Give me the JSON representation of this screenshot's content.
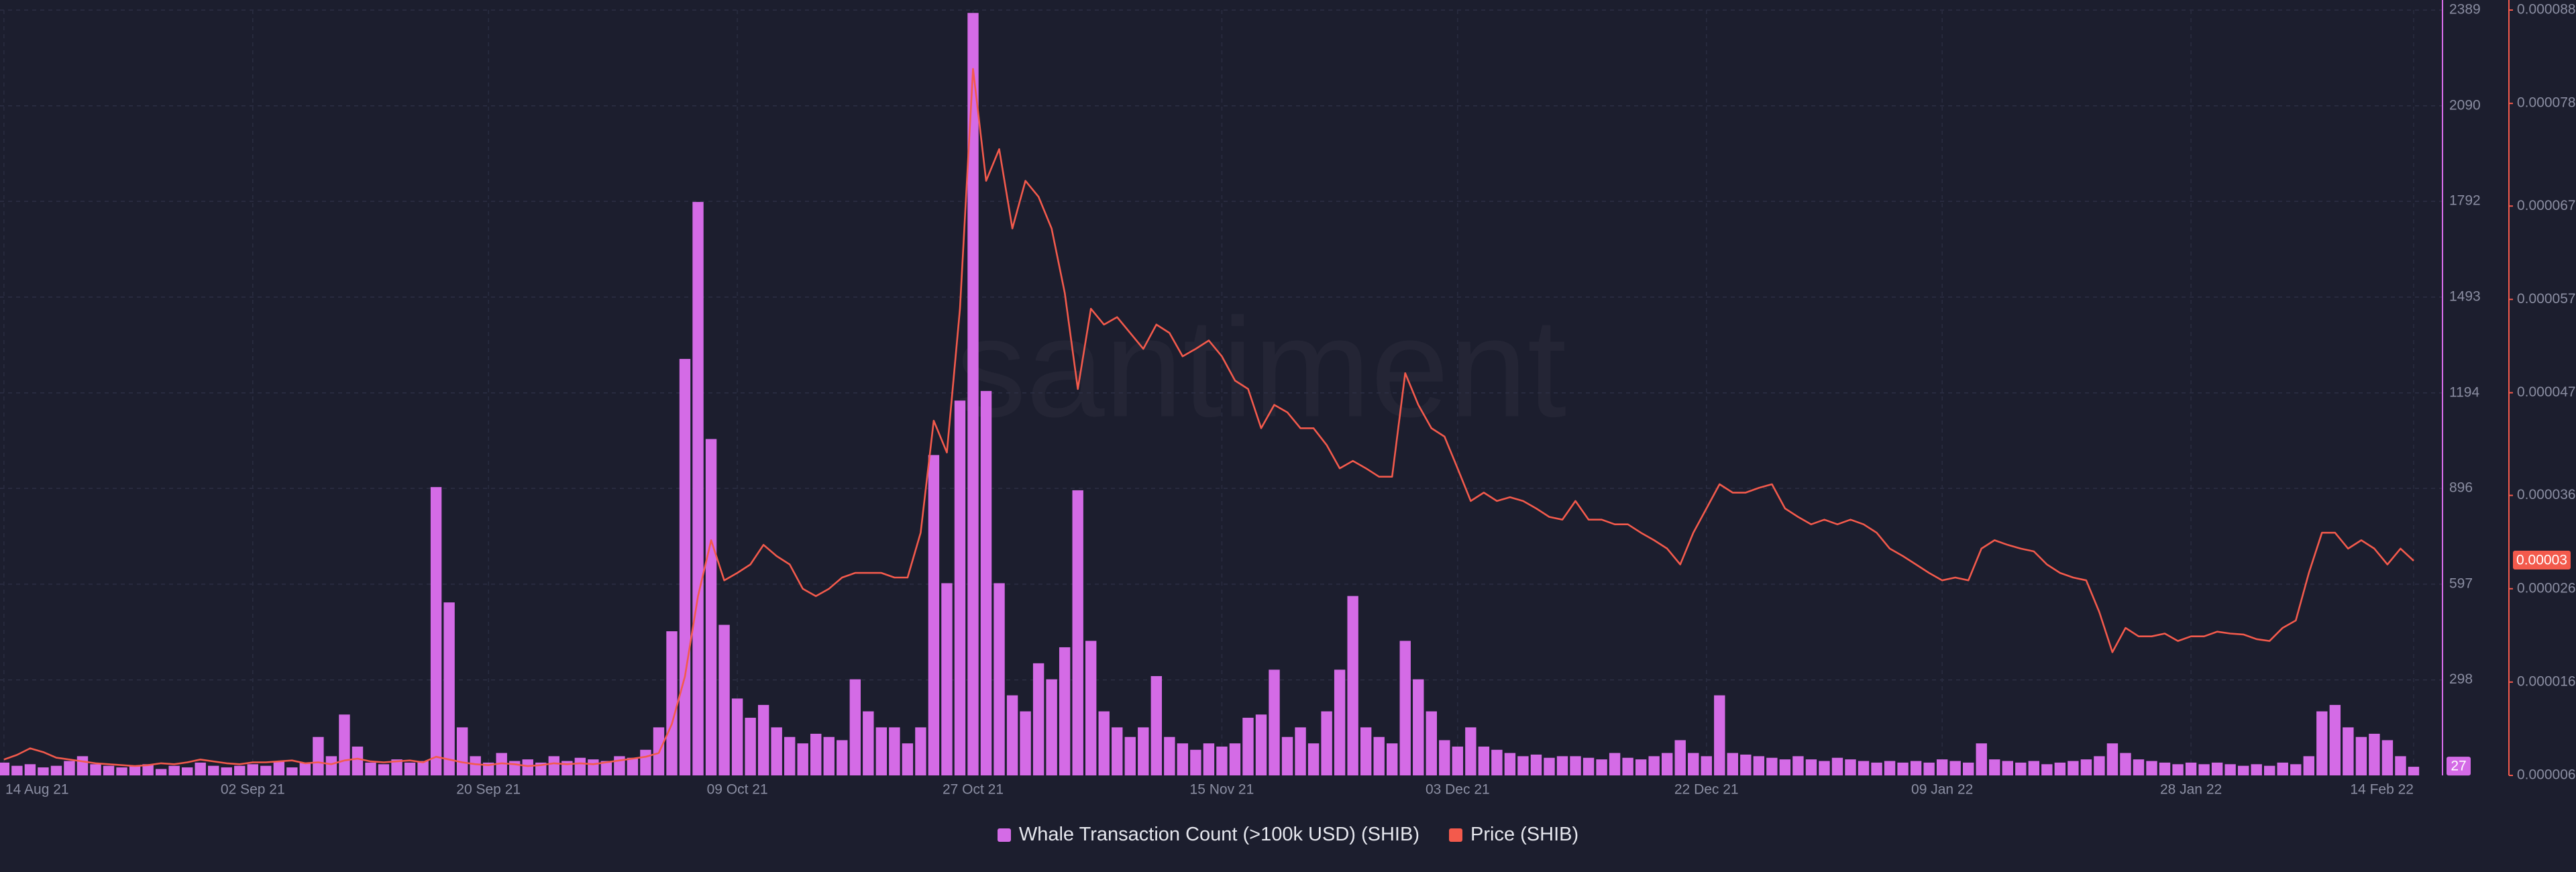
{
  "chart_data": {
    "type": "combo",
    "watermark": "santiment",
    "categories": [
      "14 Aug 21",
      null,
      null,
      null,
      null,
      null,
      null,
      null,
      null,
      null,
      null,
      null,
      null,
      null,
      null,
      null,
      null,
      null,
      null,
      "02 Sep 21",
      null,
      null,
      null,
      null,
      null,
      null,
      null,
      null,
      null,
      null,
      null,
      null,
      null,
      null,
      null,
      null,
      null,
      "20 Sep 21",
      null,
      null,
      null,
      null,
      null,
      null,
      null,
      null,
      null,
      null,
      null,
      null,
      null,
      null,
      null,
      null,
      null,
      null,
      "09 Oct 21",
      null,
      null,
      null,
      null,
      null,
      null,
      null,
      null,
      null,
      null,
      null,
      null,
      null,
      null,
      null,
      null,
      null,
      "27 Oct 21",
      null,
      null,
      null,
      null,
      null,
      null,
      null,
      null,
      null,
      null,
      null,
      null,
      null,
      null,
      null,
      null,
      null,
      null,
      "15 Nov 21",
      null,
      null,
      null,
      null,
      null,
      null,
      null,
      null,
      null,
      null,
      null,
      null,
      null,
      null,
      null,
      null,
      null,
      "03 Dec 21",
      null,
      null,
      null,
      null,
      null,
      null,
      null,
      null,
      null,
      null,
      null,
      null,
      null,
      null,
      null,
      null,
      null,
      null,
      "22 Dec 21",
      null,
      null,
      null,
      null,
      null,
      null,
      null,
      null,
      null,
      null,
      null,
      null,
      null,
      null,
      null,
      null,
      null,
      "09 Jan 22",
      null,
      null,
      null,
      null,
      null,
      null,
      null,
      null,
      null,
      null,
      null,
      null,
      null,
      null,
      null,
      null,
      null,
      null,
      "28 Jan 22",
      null,
      null,
      null,
      null,
      null,
      null,
      null,
      null,
      null,
      null,
      null,
      null,
      null,
      null,
      null,
      null,
      "14 Feb 22"
    ],
    "series": [
      {
        "name": "Whale Transaction Count (>100k USD) (SHIB)",
        "type": "bar",
        "color": "#d46be6",
        "current_label": "27",
        "values": [
          40,
          30,
          35,
          25,
          30,
          45,
          60,
          35,
          30,
          25,
          30,
          35,
          20,
          30,
          25,
          40,
          30,
          25,
          30,
          35,
          30,
          45,
          25,
          40,
          120,
          60,
          190,
          90,
          40,
          35,
          50,
          40,
          45,
          900,
          540,
          150,
          60,
          40,
          70,
          45,
          50,
          40,
          60,
          45,
          55,
          50,
          45,
          60,
          55,
          80,
          150,
          450,
          1300,
          1790,
          1050,
          470,
          240,
          180,
          220,
          150,
          120,
          100,
          130,
          120,
          110,
          300,
          200,
          150,
          150,
          100,
          150,
          1000,
          600,
          1170,
          2380,
          1200,
          600,
          250,
          200,
          350,
          300,
          400,
          890,
          420,
          200,
          150,
          120,
          150,
          310,
          120,
          100,
          80,
          100,
          90,
          100,
          180,
          190,
          330,
          120,
          150,
          100,
          200,
          330,
          560,
          150,
          120,
          100,
          420,
          300,
          200,
          110,
          90,
          150,
          90,
          80,
          70,
          60,
          65,
          55,
          60,
          60,
          55,
          50,
          70,
          55,
          50,
          60,
          70,
          110,
          70,
          60,
          250,
          70,
          65,
          60,
          55,
          50,
          60,
          50,
          45,
          55,
          50,
          45,
          40,
          45,
          40,
          45,
          40,
          50,
          45,
          40,
          100,
          50,
          45,
          40,
          45,
          35,
          40,
          45,
          50,
          60,
          100,
          70,
          50,
          45,
          40,
          35,
          40,
          35,
          40,
          35,
          30,
          35,
          30,
          40,
          35,
          60,
          200,
          220,
          150,
          120,
          130,
          110,
          60,
          27
        ]
      },
      {
        "name": "Price (SHIB)",
        "type": "line",
        "axis": "y2",
        "color": "#f35a4c",
        "current_label": "0.00003",
        "values": [
          7.7e-06,
          8.2e-06,
          8.9e-06,
          8.5e-06,
          7.9e-06,
          7.7e-06,
          7.5e-06,
          7.3e-06,
          7.2e-06,
          7.1e-06,
          7e-06,
          7.1e-06,
          7.3e-06,
          7.2e-06,
          7.4e-06,
          7.7e-06,
          7.5e-06,
          7.3e-06,
          7.2e-06,
          7.4e-06,
          7.4e-06,
          7.5e-06,
          7.6e-06,
          7.3e-06,
          7.4e-06,
          7.2e-06,
          7.6e-06,
          7.8e-06,
          7.5e-06,
          7.4e-06,
          7.5e-06,
          7.6e-06,
          7.4e-06,
          8e-06,
          7.7e-06,
          7.4e-06,
          7.2e-06,
          7.1e-06,
          7.3e-06,
          7.2e-06,
          7e-06,
          7.1e-06,
          7.3e-06,
          7.2e-06,
          7.3e-06,
          7.2e-06,
          7.4e-06,
          7.6e-06,
          7.8e-06,
          8e-06,
          8.4e-06,
          1.15e-05,
          1.66e-05,
          2.52e-05,
          3.12e-05,
          2.69e-05,
          2.77e-05,
          2.86e-05,
          3.07e-05,
          2.95e-05,
          2.86e-05,
          2.6e-05,
          2.52e-05,
          2.6e-05,
          2.72e-05,
          2.77e-05,
          2.77e-05,
          2.77e-05,
          2.72e-05,
          2.72e-05,
          3.2e-05,
          4.4e-05,
          4.06e-05,
          5.6e-05,
          8.17e-05,
          6.97e-05,
          7.31e-05,
          6.46e-05,
          6.97e-05,
          6.8e-05,
          6.46e-05,
          5.77e-05,
          4.74e-05,
          5.6e-05,
          5.43e-05,
          5.51e-05,
          5.34e-05,
          5.17e-05,
          5.43e-05,
          5.34e-05,
          5.09e-05,
          5.17e-05,
          5.26e-05,
          5.09e-05,
          4.83e-05,
          4.74e-05,
          4.32e-05,
          4.57e-05,
          4.49e-05,
          4.32e-05,
          4.32e-05,
          4.14e-05,
          3.89e-05,
          3.97e-05,
          3.89e-05,
          3.8e-05,
          3.8e-05,
          4.91e-05,
          4.57e-05,
          4.32e-05,
          4.23e-05,
          3.89e-05,
          3.54e-05,
          3.63e-05,
          3.54e-05,
          3.58e-05,
          3.54e-05,
          3.46e-05,
          3.37e-05,
          3.34e-05,
          3.54e-05,
          3.34e-05,
          3.34e-05,
          3.29e-05,
          3.29e-05,
          3.2e-05,
          3.12e-05,
          3.03e-05,
          2.86e-05,
          3.2e-05,
          3.46e-05,
          3.72e-05,
          3.63e-05,
          3.63e-05,
          3.68e-05,
          3.72e-05,
          3.46e-05,
          3.37e-05,
          3.29e-05,
          3.34e-05,
          3.29e-05,
          3.34e-05,
          3.29e-05,
          3.2e-05,
          3.03e-05,
          2.95e-05,
          2.86e-05,
          2.77e-05,
          2.69e-05,
          2.72e-05,
          2.69e-05,
          3.03e-05,
          3.12e-05,
          3.07e-05,
          3.03e-05,
          3e-05,
          2.86e-05,
          2.77e-05,
          2.72e-05,
          2.69e-05,
          2.35e-05,
          1.92e-05,
          2.18e-05,
          2.09e-05,
          2.09e-05,
          2.12e-05,
          2.04e-05,
          2.09e-05,
          2.09e-05,
          2.14e-05,
          2.12e-05,
          2.11e-05,
          2.06e-05,
          2.04e-05,
          2.18e-05,
          2.26e-05,
          2.77e-05,
          3.2e-05,
          3.2e-05,
          3.03e-05,
          3.12e-05,
          3.03e-05,
          2.86e-05,
          3.03e-05,
          2.9e-05
        ]
      }
    ],
    "ylim": [
      0,
      2389
    ],
    "yticks": [
      298,
      597,
      896,
      1194,
      1493,
      1792,
      2090,
      2389
    ],
    "y2lim": [
      6e-06,
      8.8e-05
    ],
    "y2ticks": [
      6e-06,
      1.6e-05,
      2.6e-05,
      3.6e-05,
      4.7e-05,
      5.7e-05,
      6.7e-05,
      7.8e-05,
      8.8e-05
    ],
    "grid": true
  }
}
